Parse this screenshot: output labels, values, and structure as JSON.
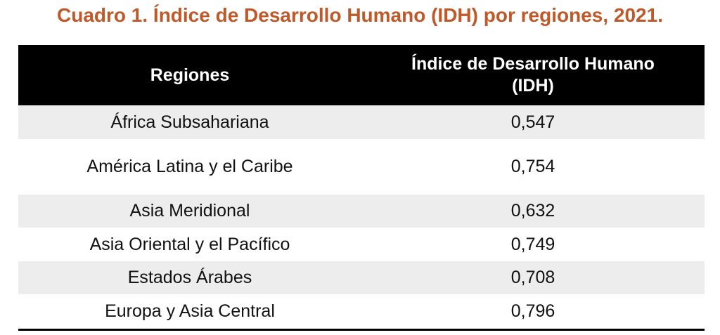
{
  "title": "Cuadro 1. Índice de Desarrollo Humano (IDH) por regiones, 2021.",
  "table": {
    "headers": [
      "Regiones",
      "Índice de Desarrollo Humano (IDH)"
    ],
    "rows": [
      {
        "region": "África Subsahariana",
        "idh": "0,547"
      },
      {
        "region": "América Latina y el Caribe",
        "idh": "0,754"
      },
      {
        "region": "Asia Meridional",
        "idh": "0,632"
      },
      {
        "region": "Asia Oriental y el Pacífico",
        "idh": "0,749"
      },
      {
        "region": "Estados Árabes",
        "idh": "0,708"
      },
      {
        "region": "Europa y Asia Central",
        "idh": "0,796"
      }
    ]
  }
}
